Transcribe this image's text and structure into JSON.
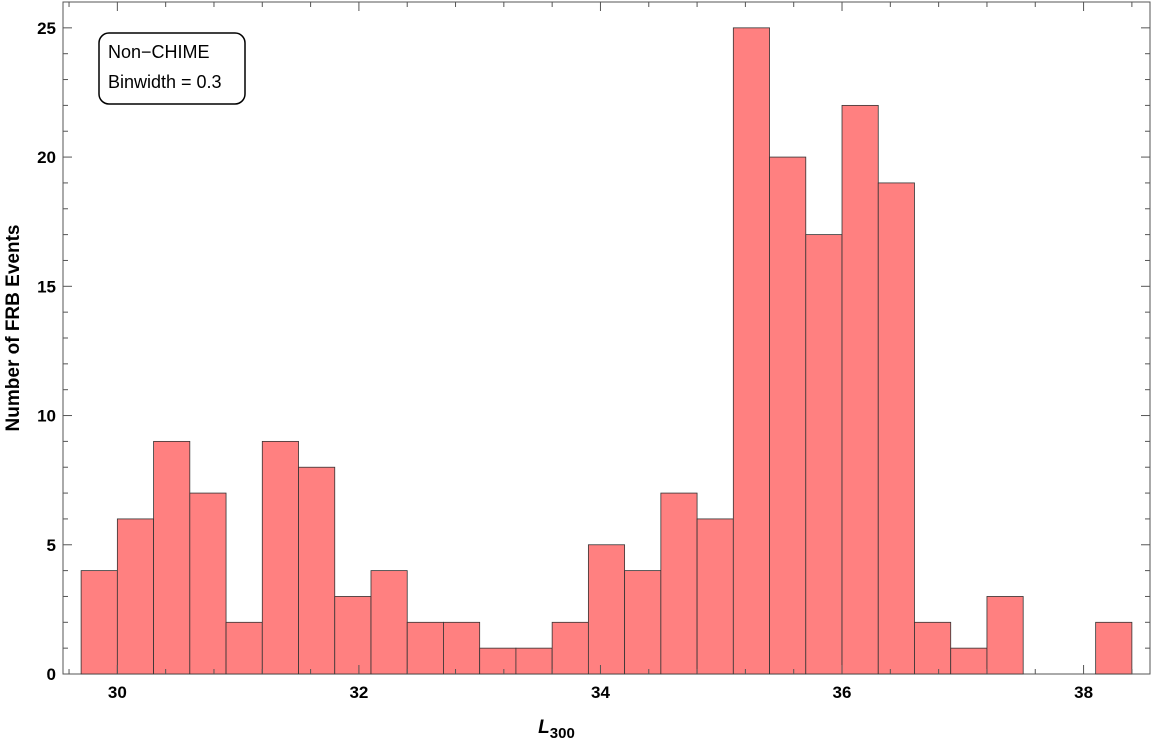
{
  "chart_data": {
    "type": "bar",
    "subtype": "histogram",
    "title": "",
    "xlabel_main": "L",
    "xlabel_sub": "300",
    "ylabel": "Number of FRB Events",
    "legend_lines": [
      "Non−CHIME",
      "Binwidth = 0.3"
    ],
    "legend_placement": "top-left",
    "grid": false,
    "xlim": [
      29.55,
      38.55
    ],
    "ylim": [
      0,
      26
    ],
    "xticks": [
      30,
      32,
      34,
      36,
      38
    ],
    "yticks": [
      0,
      5,
      10,
      15,
      20,
      25
    ],
    "bin_width": 0.3,
    "bin_edges": [
      29.7,
      30.0,
      30.3,
      30.6,
      30.9,
      31.2,
      31.5,
      31.8,
      32.1,
      32.4,
      32.7,
      33.0,
      33.3,
      33.6,
      33.9,
      34.2,
      34.5,
      34.8,
      35.1,
      35.4,
      35.7,
      36.0,
      36.3,
      36.6,
      36.9,
      37.2,
      37.5,
      37.8,
      38.1,
      38.4
    ],
    "values": [
      4,
      6,
      9,
      7,
      2,
      9,
      8,
      3,
      4,
      2,
      2,
      1,
      1,
      2,
      5,
      4,
      7,
      6,
      25,
      20,
      17,
      22,
      19,
      2,
      1,
      3,
      0,
      0,
      2
    ],
    "bar_color": "#ff8080",
    "edge_color": "#333333"
  }
}
